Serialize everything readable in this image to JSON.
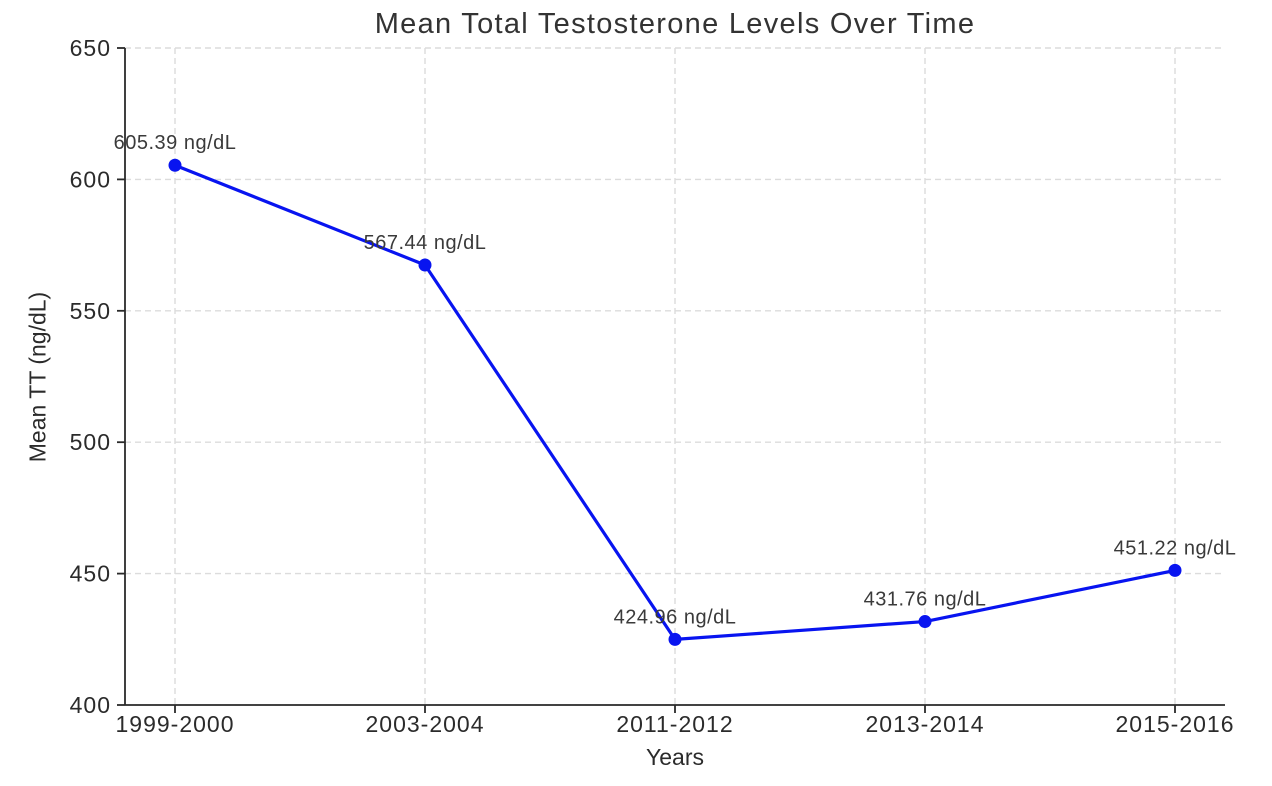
{
  "chart_data": {
    "type": "line",
    "title": "Mean Total Testosterone Levels Over Time",
    "xlabel": "Years",
    "ylabel": "Mean TT (ng/dL)",
    "categories": [
      "1999-2000",
      "2003-2004",
      "2011-2012",
      "2013-2014",
      "2015-2016"
    ],
    "series": [
      {
        "name": "Mean TT",
        "values": [
          605.39,
          567.44,
          424.96,
          431.76,
          451.22
        ],
        "point_labels": [
          "605.39 ng/dL",
          "567.44 ng/dL",
          "424.96 ng/dL",
          "431.76 ng/dL",
          "451.22 ng/dL"
        ]
      }
    ],
    "ylim": [
      400,
      650
    ],
    "yticks": [
      400,
      450,
      500,
      550,
      600,
      650
    ],
    "grid": true,
    "grid_style": "dashed",
    "legend_position": "none",
    "line_color": "#0814f0",
    "marker": "circle",
    "marker_color": "#0814f0",
    "grid_color": "#dcdcdc",
    "axis_color": "#2a2a2a",
    "text_color": "#2b2b2b",
    "background_color": "#ffffff"
  }
}
